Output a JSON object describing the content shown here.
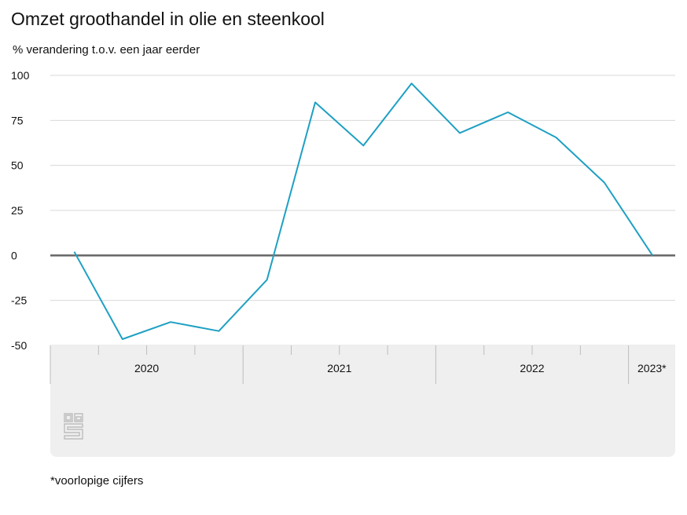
{
  "chart_data": {
    "type": "line",
    "title": "Omzet groothandel in olie en steenkool",
    "subtitle": "% verandering t.o.v. een jaar eerder",
    "footnote": "*voorlopige cijfers",
    "ylim": [
      -50,
      100
    ],
    "yticks": [
      "100",
      "75",
      "50",
      "25",
      "0",
      "-25",
      "-50"
    ],
    "ytick_values": [
      100,
      75,
      50,
      25,
      0,
      -25,
      -50
    ],
    "years": [
      {
        "label": "2020",
        "quarters": 4
      },
      {
        "label": "2021",
        "quarters": 4
      },
      {
        "label": "2022",
        "quarters": 4
      },
      {
        "label": "2023*",
        "quarters": 1
      }
    ],
    "x": [
      "2020 Q1",
      "2020 Q2",
      "2020 Q3",
      "2020 Q4",
      "2021 Q1",
      "2021 Q2",
      "2021 Q3",
      "2021 Q4",
      "2022 Q1",
      "2022 Q2",
      "2022 Q3",
      "2022 Q4",
      "2023 Q1"
    ],
    "series": [
      {
        "values": [
          2,
          -46.5,
          -37,
          -42,
          -13.5,
          85,
          61,
          95.5,
          68,
          79.5,
          65.5,
          40.5,
          0
        ],
        "color": "#1ea0c3"
      }
    ],
    "grid": true,
    "zero_line_color": "#666666",
    "logo": "cbs-logo"
  }
}
